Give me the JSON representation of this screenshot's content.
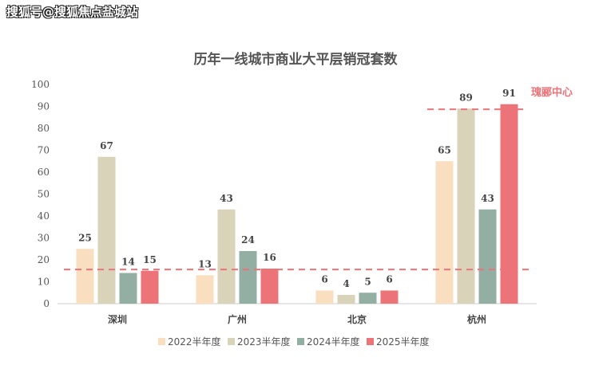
{
  "watermark": "搜狐号@搜狐焦点盐城站",
  "chart_data": {
    "type": "bar",
    "title": "历年一线城市商业大平层销冠套数",
    "categories": [
      "深圳",
      "广州",
      "北京",
      "杭州"
    ],
    "series": [
      {
        "name": "2022半年度",
        "color": "#f9dfc0",
        "values": [
          25,
          13,
          6,
          65
        ]
      },
      {
        "name": "2023半年度",
        "color": "#d9d3ba",
        "values": [
          67,
          43,
          4,
          89
        ]
      },
      {
        "name": "2024半年度",
        "color": "#93aea3",
        "values": [
          14,
          24,
          5,
          43
        ]
      },
      {
        "name": "2025半年度",
        "color": "#ec7479",
        "values": [
          15,
          16,
          6,
          91
        ]
      }
    ],
    "ylim": [
      0,
      100
    ],
    "yticks": [
      0,
      10,
      20,
      30,
      40,
      50,
      60,
      70,
      80,
      90,
      100
    ],
    "grid": false,
    "legend": "bottom",
    "reference_lines": [
      {
        "value": 15.6,
        "span": "all",
        "color": "#ec7479"
      },
      {
        "value": 88.7,
        "span": "杭州",
        "color": "#ec7479",
        "label": "瑰郦中心"
      }
    ]
  }
}
